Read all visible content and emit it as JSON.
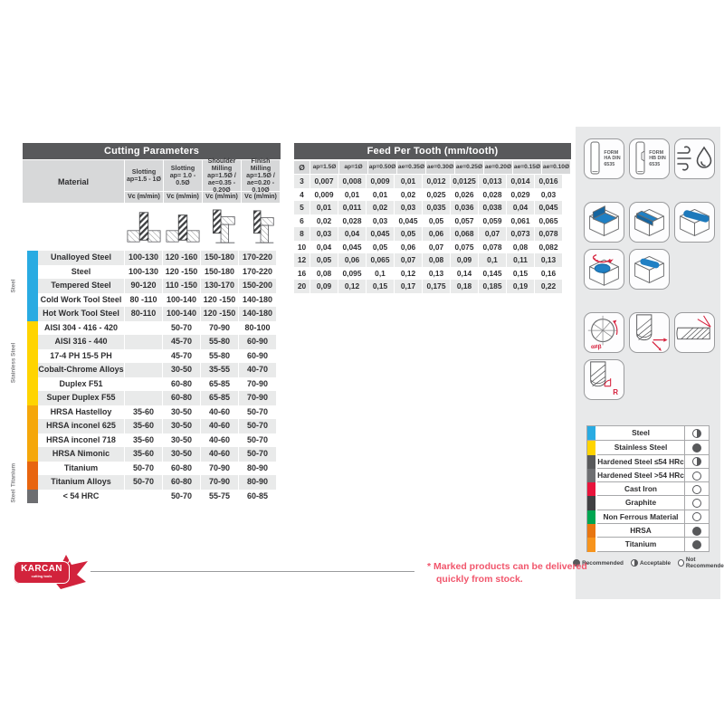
{
  "cutting_table": {
    "title": "Cutting Parameters",
    "material_header": "Material",
    "vc_label": "Vc (m/min)",
    "columns": [
      {
        "lines": [
          "Slotting",
          "ap=1.5 - 1Ø"
        ]
      },
      {
        "lines": [
          "Slotting",
          "ap= 1.0 - 0.5Ø"
        ]
      },
      {
        "lines": [
          "Shoulder Milling",
          "ap=1.5Ø  /",
          "ae=0.35 - 0.20Ø"
        ]
      },
      {
        "lines": [
          "Finish Milling",
          "ap=1.5Ø  /",
          "ae=0.20 - 0.10Ø"
        ]
      }
    ],
    "groups": [
      {
        "label": "Steel",
        "color": "#29abe2",
        "rows": 5
      },
      {
        "label": "Stainless Steel",
        "color": "#ffd400",
        "rows": 6
      },
      {
        "label": "",
        "color": "#f5a70a",
        "rows": 4
      },
      {
        "label": "Titanium",
        "color": "#e8650f",
        "rows": 2
      },
      {
        "label": "Steel",
        "color": "#6d6e71",
        "rows": 1
      }
    ],
    "rows": [
      {
        "material": "Unalloyed Steel",
        "values": [
          "100-130",
          "120 -160",
          "150-180",
          "170-220"
        ]
      },
      {
        "material": "Steel",
        "values": [
          "100-130",
          "120 -150",
          "150-180",
          "170-220"
        ]
      },
      {
        "material": "Tempered Steel",
        "values": [
          "90-120",
          "110 -150",
          "130-170",
          "150-200"
        ]
      },
      {
        "material": "Cold Work Tool Steel",
        "values": [
          "80 -110",
          "100-140",
          "120 -150",
          "140-180"
        ]
      },
      {
        "material": "Hot Work Tool Steel",
        "values": [
          "80-110",
          "100-140",
          "120 -150",
          "140-180"
        ]
      },
      {
        "material": "AISI 304 - 416 - 420",
        "values": [
          "",
          "50-70",
          "70-90",
          "80-100"
        ]
      },
      {
        "material": "AISI 316 - 440",
        "values": [
          "",
          "45-70",
          "55-80",
          "60-90"
        ]
      },
      {
        "material": "17-4 PH 15-5 PH",
        "values": [
          "",
          "45-70",
          "55-80",
          "60-90"
        ]
      },
      {
        "material": "Cobalt-Chrome Alloys",
        "values": [
          "",
          "30-50",
          "35-55",
          "40-70"
        ]
      },
      {
        "material": "Duplex F51",
        "values": [
          "",
          "60-80",
          "65-85",
          "70-90"
        ]
      },
      {
        "material": "Super Duplex F55",
        "values": [
          "",
          "60-80",
          "65-85",
          "70-90"
        ]
      },
      {
        "material": "HRSA Hastelloy",
        "values": [
          "35-60",
          "30-50",
          "40-60",
          "50-70"
        ]
      },
      {
        "material": "HRSA inconel 625",
        "values": [
          "35-60",
          "30-50",
          "40-60",
          "50-70"
        ]
      },
      {
        "material": "HRSA inconel 718",
        "values": [
          "35-60",
          "30-50",
          "40-60",
          "50-70"
        ]
      },
      {
        "material": "HRSA Nimonic",
        "values": [
          "35-60",
          "30-50",
          "40-60",
          "50-70"
        ]
      },
      {
        "material": "Titanium",
        "values": [
          "50-70",
          "60-80",
          "70-90",
          "80-90"
        ]
      },
      {
        "material": "Titanium Alloys",
        "values": [
          "50-70",
          "60-80",
          "70-90",
          "80-90"
        ]
      },
      {
        "material": "< 54 HRC",
        "values": [
          "",
          "50-70",
          "55-75",
          "60-85"
        ]
      }
    ]
  },
  "feed_table": {
    "title": "Feed Per Tooth (mm/tooth)",
    "headers": [
      "Ø",
      "ap=1.5Ø",
      "ap=1Ø",
      "ap=0.50Ø",
      "ae=0.35Ø",
      "ae=0.30Ø",
      "ae=0.25Ø",
      "ae=0.20Ø",
      "ae=0.15Ø",
      "ae=0.10Ø"
    ],
    "rows": [
      {
        "d": "3",
        "values": [
          "0,007",
          "0,008",
          "0,009",
          "0,01",
          "0,012",
          "0,0125",
          "0,013",
          "0,014",
          "0,016"
        ]
      },
      {
        "d": "4",
        "values": [
          "0,009",
          "0,01",
          "0,01",
          "0,02",
          "0,025",
          "0,026",
          "0,028",
          "0,029",
          "0,03"
        ]
      },
      {
        "d": "5",
        "values": [
          "0,01",
          "0,011",
          "0,02",
          "0,03",
          "0,035",
          "0,036",
          "0,038",
          "0,04",
          "0,045"
        ]
      },
      {
        "d": "6",
        "values": [
          "0,02",
          "0,028",
          "0,03",
          "0,045",
          "0,05",
          "0,057",
          "0,059",
          "0,061",
          "0,065"
        ]
      },
      {
        "d": "8",
        "values": [
          "0,03",
          "0,04",
          "0,045",
          "0,05",
          "0,06",
          "0,068",
          "0,07",
          "0,073",
          "0,078"
        ]
      },
      {
        "d": "10",
        "values": [
          "0,04",
          "0,045",
          "0,05",
          "0,06",
          "0,07",
          "0,075",
          "0,078",
          "0,08",
          "0,082"
        ]
      },
      {
        "d": "12",
        "values": [
          "0,05",
          "0,06",
          "0,065",
          "0,07",
          "0,08",
          "0,09",
          "0,1",
          "0,11",
          "0,13"
        ]
      },
      {
        "d": "16",
        "values": [
          "0,08",
          "0,095",
          "0,1",
          "0,12",
          "0,13",
          "0,14",
          "0,145",
          "0,15",
          "0,16"
        ]
      },
      {
        "d": "20",
        "values": [
          "0,09",
          "0,12",
          "0,15",
          "0,17",
          "0,175",
          "0,18",
          "0,185",
          "0,19",
          "0,22"
        ]
      }
    ]
  },
  "icons": {
    "form_ha_lines": [
      "FORM",
      "HA DIN",
      "6535"
    ],
    "form_hb_lines": [
      "FORM",
      "HB DIN",
      "6535"
    ],
    "alpha_label": "α≠β",
    "r_label": "R"
  },
  "compatibility": {
    "materials": [
      {
        "name": "Steel",
        "color": "#29abe2",
        "rating": "acceptable"
      },
      {
        "name": "Stainless Steel",
        "color": "#ffd400",
        "rating": "recommended"
      },
      {
        "name": "Hardened Steel ≤54 HRc",
        "color": "#58595b",
        "rating": "acceptable"
      },
      {
        "name": "Hardened Steel >54 HRc",
        "color": "#6d6e71",
        "rating": "not-recommended"
      },
      {
        "name": "Cast Iron",
        "color": "#e8143c",
        "rating": "not-recommended"
      },
      {
        "name": "Graphite",
        "color": "#3f4042",
        "rating": "not-recommended"
      },
      {
        "name": "Non Ferrous Material",
        "color": "#00a651",
        "rating": "not-recommended"
      },
      {
        "name": "HRSA",
        "color": "#e87611",
        "rating": "recommended"
      },
      {
        "name": "Titanium",
        "color": "#f7941d",
        "rating": "recommended"
      }
    ],
    "legend": [
      {
        "label": "Recommended",
        "rating": "recommended"
      },
      {
        "label": "Acceptable",
        "rating": "acceptable"
      },
      {
        "label": "Not Recommended",
        "rating": "not-recommended"
      }
    ]
  },
  "footer": {
    "logo_text": "KARCAN",
    "logo_sub": "cutting tools",
    "note_line1": "* Marked products can be delivered",
    "note_line2": "quickly from stock."
  }
}
